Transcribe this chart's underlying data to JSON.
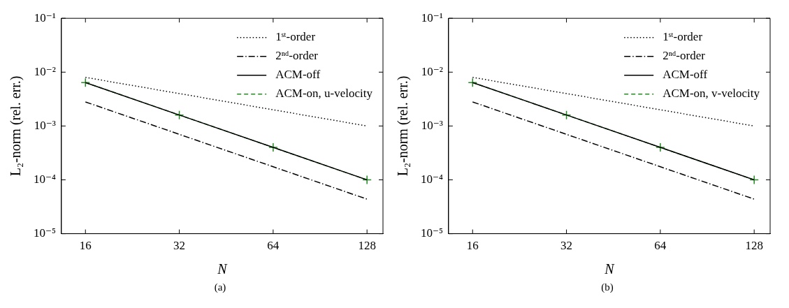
{
  "chart_data": [
    {
      "type": "line",
      "xlabel": "N",
      "ylabel": "L₂-norm (rel. err.)",
      "log": "xy",
      "xlim": [
        13.4,
        144
      ],
      "ylim": [
        1e-05,
        0.1
      ],
      "xticks": [
        16,
        32,
        64,
        128
      ],
      "yticks": [
        {
          "value": 0.1,
          "label": "10⁻¹"
        },
        {
          "value": 0.01,
          "label": "10⁻²"
        },
        {
          "value": 0.001,
          "label": "10⁻³"
        },
        {
          "value": 0.0001,
          "label": "10⁻⁴"
        },
        {
          "value": 1e-05,
          "label": "10⁻⁵"
        }
      ],
      "grid": false,
      "legend": "top right",
      "annotations": [
        "(a)"
      ],
      "series": [
        {
          "name": "1ˢᵗ-order",
          "color": "#000000",
          "line_style": "dotted",
          "marker": "none",
          "x": [
            16,
            128
          ],
          "values": [
            0.008,
            0.001
          ]
        },
        {
          "name": "2ⁿᵈ-order",
          "color": "#000000",
          "line_style": "dashdot",
          "marker": "none",
          "x": [
            16,
            128
          ],
          "values": [
            0.0028,
            4.38e-05
          ]
        },
        {
          "name": "ACM-off",
          "color": "#000000",
          "line_style": "solid",
          "marker": "none",
          "x": [
            16,
            32,
            64,
            128
          ],
          "values": [
            0.0064,
            0.0016,
            0.0004,
            0.0001
          ]
        },
        {
          "name": "ACM-on, u-velocity",
          "color": "#228b22",
          "line_style": "dashed",
          "marker": "cross",
          "x": [
            16,
            32,
            64,
            128
          ],
          "values": [
            0.0064,
            0.0016,
            0.0004,
            0.0001
          ]
        }
      ]
    },
    {
      "type": "line",
      "xlabel": "N",
      "ylabel": "L₂-norm (rel. err.)",
      "log": "xy",
      "xlim": [
        13.4,
        144
      ],
      "ylim": [
        1e-05,
        0.1
      ],
      "xticks": [
        16,
        32,
        64,
        128
      ],
      "yticks": [
        {
          "value": 0.1,
          "label": "10⁻¹"
        },
        {
          "value": 0.01,
          "label": "10⁻²"
        },
        {
          "value": 0.001,
          "label": "10⁻³"
        },
        {
          "value": 0.0001,
          "label": "10⁻⁴"
        },
        {
          "value": 1e-05,
          "label": "10⁻⁵"
        }
      ],
      "grid": false,
      "legend": "top right",
      "annotations": [
        "(b)"
      ],
      "series": [
        {
          "name": "1ˢᵗ-order",
          "color": "#000000",
          "line_style": "dotted",
          "marker": "none",
          "x": [
            16,
            128
          ],
          "values": [
            0.008,
            0.001
          ]
        },
        {
          "name": "2ⁿᵈ-order",
          "color": "#000000",
          "line_style": "dashdot",
          "marker": "none",
          "x": [
            16,
            128
          ],
          "values": [
            0.0028,
            4.38e-05
          ]
        },
        {
          "name": "ACM-off",
          "color": "#000000",
          "line_style": "solid",
          "marker": "none",
          "x": [
            16,
            32,
            64,
            128
          ],
          "values": [
            0.0064,
            0.0016,
            0.0004,
            0.0001
          ]
        },
        {
          "name": "ACM-on, v-velocity",
          "color": "#228b22",
          "line_style": "dashed",
          "marker": "cross",
          "x": [
            16,
            32,
            64,
            128
          ],
          "values": [
            0.0064,
            0.0016,
            0.0004,
            0.0001
          ]
        }
      ]
    }
  ]
}
